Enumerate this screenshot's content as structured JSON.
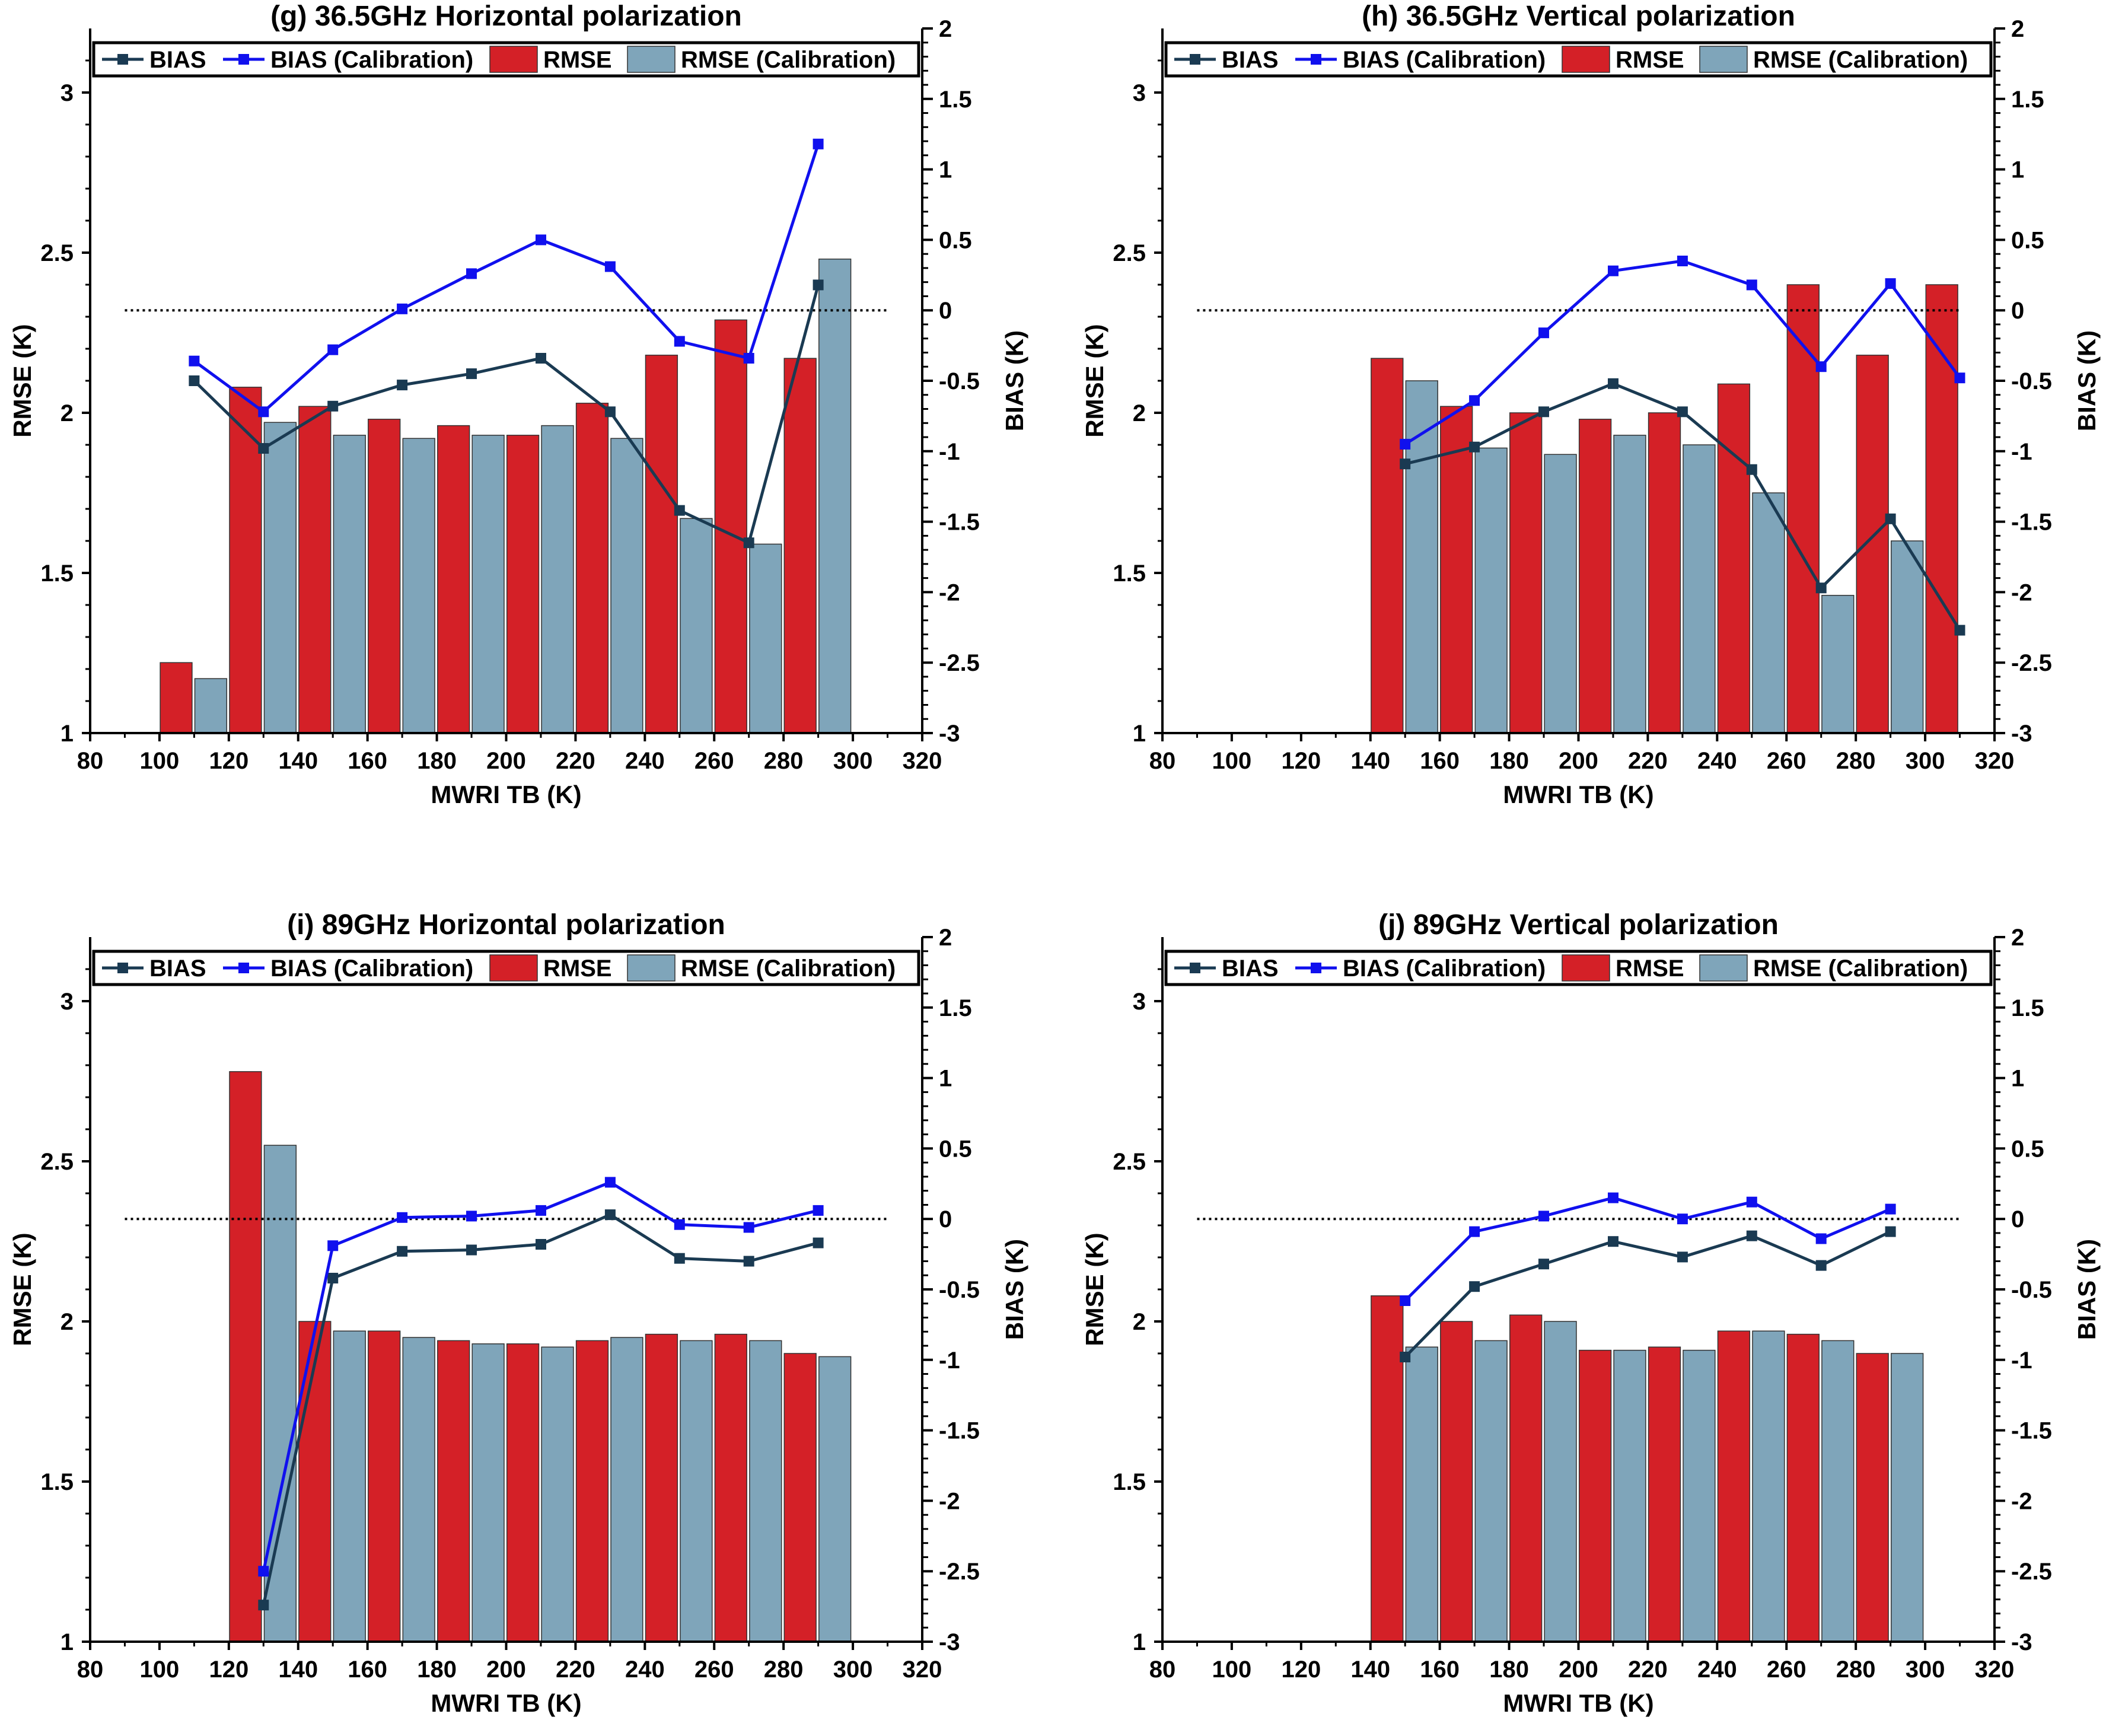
{
  "figure": {
    "background": "#ffffff"
  },
  "colors": {
    "rmse": "#d42027",
    "rmse_cal": "#7fa5ba",
    "bias": "#1a3a52",
    "bias_cal": "#1010ee"
  },
  "chart_data": [
    {
      "type": "bar",
      "title": "(g) 36.5GHz Horizontal polarization",
      "xlabel": "MWRI TB (K)",
      "ylabel": "RMSE (K)",
      "y2label": "BIAS (K)",
      "xlim": [
        80,
        320
      ],
      "xticks": [
        80,
        100,
        120,
        140,
        160,
        180,
        200,
        220,
        240,
        260,
        280,
        300,
        320
      ],
      "ylim": [
        1,
        3.2
      ],
      "yticks": [
        1,
        1.5,
        2,
        2.5,
        3
      ],
      "y2lim": [
        -3,
        2
      ],
      "y2ticks": [
        -3,
        -2.5,
        -2,
        -1.5,
        -1,
        -0.5,
        0,
        0.5,
        1,
        1.5,
        2
      ],
      "zero_line": {
        "x_range": [
          90,
          310
        ],
        "y2": 0
      },
      "legend": {
        "position": "top",
        "labels": [
          "BIAS",
          "BIAS (Calibration)",
          "RMSE",
          "RMSE (Calibration)"
        ]
      },
      "centers": [
        110,
        130,
        150,
        170,
        190,
        210,
        230,
        250,
        270,
        290
      ],
      "series": [
        {
          "name": "RMSE",
          "kind": "bar",
          "axis": "left",
          "values": [
            1.22,
            2.08,
            2.02,
            1.98,
            1.96,
            1.93,
            2.03,
            2.18,
            2.29,
            2.17
          ]
        },
        {
          "name": "RMSE (Calibration)",
          "kind": "bar",
          "axis": "left",
          "values": [
            1.17,
            1.97,
            1.93,
            1.92,
            1.93,
            1.96,
            1.92,
            1.67,
            1.59,
            2.48
          ]
        },
        {
          "name": "BIAS",
          "kind": "line",
          "axis": "right",
          "values": [
            -0.5,
            -0.98,
            -0.68,
            -0.53,
            -0.45,
            -0.34,
            -0.72,
            -1.42,
            -1.65,
            0.18
          ]
        },
        {
          "name": "BIAS (Calibration)",
          "kind": "line",
          "axis": "right",
          "values": [
            -0.36,
            -0.72,
            -0.28,
            0.01,
            0.26,
            0.5,
            0.31,
            -0.22,
            -0.34,
            1.18
          ]
        }
      ]
    },
    {
      "type": "bar",
      "title": "(h) 36.5GHz Vertical polarization",
      "xlabel": "MWRI TB (K)",
      "ylabel": "RMSE (K)",
      "y2label": "BIAS (K)",
      "xlim": [
        80,
        320
      ],
      "xticks": [
        80,
        100,
        120,
        140,
        160,
        180,
        200,
        220,
        240,
        260,
        280,
        300,
        320
      ],
      "ylim": [
        1,
        3.2
      ],
      "yticks": [
        1,
        1.5,
        2,
        2.5,
        3
      ],
      "y2lim": [
        -3,
        2
      ],
      "y2ticks": [
        -3,
        -2.5,
        -2,
        -1.5,
        -1,
        -0.5,
        0,
        0.5,
        1,
        1.5,
        2
      ],
      "zero_line": {
        "x_range": [
          90,
          310
        ],
        "y2": 0
      },
      "legend": {
        "position": "top",
        "labels": [
          "BIAS",
          "BIAS (Calibration)",
          "RMSE",
          "RMSE (Calibration)"
        ]
      },
      "centers": [
        150,
        170,
        190,
        210,
        230,
        250,
        270,
        290,
        310
      ],
      "series": [
        {
          "name": "RMSE",
          "kind": "bar",
          "axis": "left",
          "values": [
            2.17,
            2.02,
            2.0,
            1.98,
            2.0,
            2.09,
            2.4,
            2.18,
            2.4
          ]
        },
        {
          "name": "RMSE (Calibration)",
          "kind": "bar",
          "axis": "left",
          "values": [
            2.1,
            1.89,
            1.87,
            1.93,
            1.9,
            1.75,
            1.43,
            1.6,
            null
          ]
        },
        {
          "name": "BIAS",
          "kind": "line",
          "axis": "right",
          "values": [
            -1.09,
            -0.97,
            -0.72,
            -0.52,
            -0.72,
            -1.13,
            -1.97,
            -1.48,
            -2.27
          ]
        },
        {
          "name": "BIAS (Calibration)",
          "kind": "line",
          "axis": "right",
          "values": [
            -0.95,
            -0.64,
            -0.16,
            0.28,
            0.35,
            0.18,
            -0.4,
            0.19,
            -0.48
          ]
        }
      ]
    },
    {
      "type": "bar",
      "title": "(i) 89GHz Horizontal polarization",
      "xlabel": "MWRI TB (K)",
      "ylabel": "RMSE (K)",
      "y2label": "BIAS (K)",
      "xlim": [
        80,
        320
      ],
      "xticks": [
        80,
        100,
        120,
        140,
        160,
        180,
        200,
        220,
        240,
        260,
        280,
        300,
        320
      ],
      "ylim": [
        1,
        3.2
      ],
      "yticks": [
        1,
        1.5,
        2,
        2.5,
        3
      ],
      "y2lim": [
        -3,
        2
      ],
      "y2ticks": [
        -3,
        -2.5,
        -2,
        -1.5,
        -1,
        -0.5,
        0,
        0.5,
        1,
        1.5,
        2
      ],
      "zero_line": {
        "x_range": [
          90,
          310
        ],
        "y2": 0
      },
      "legend": {
        "position": "top",
        "labels": [
          "BIAS",
          "BIAS (Calibration)",
          "RMSE",
          "RMSE (Calibration)"
        ]
      },
      "centers": [
        130,
        150,
        170,
        190,
        210,
        230,
        250,
        270,
        290
      ],
      "series": [
        {
          "name": "RMSE",
          "kind": "bar",
          "axis": "left",
          "values": [
            2.78,
            2.0,
            1.97,
            1.94,
            1.93,
            1.94,
            1.96,
            1.96,
            1.9
          ]
        },
        {
          "name": "RMSE (Calibration)",
          "kind": "bar",
          "axis": "left",
          "values": [
            2.55,
            1.97,
            1.95,
            1.93,
            1.92,
            1.95,
            1.94,
            1.94,
            1.89
          ]
        },
        {
          "name": "BIAS",
          "kind": "line",
          "axis": "right",
          "values": [
            -2.74,
            -0.42,
            -0.23,
            -0.22,
            -0.18,
            0.03,
            -0.28,
            -0.3,
            -0.17
          ]
        },
        {
          "name": "BIAS (Calibration)",
          "kind": "line",
          "axis": "right",
          "values": [
            -2.5,
            -0.19,
            0.01,
            0.02,
            0.06,
            0.26,
            -0.04,
            -0.06,
            0.06
          ]
        }
      ]
    },
    {
      "type": "bar",
      "title": "(j) 89GHz Vertical polarization",
      "xlabel": "MWRI TB (K)",
      "ylabel": "RMSE (K)",
      "y2label": "BIAS (K)",
      "xlim": [
        80,
        320
      ],
      "xticks": [
        80,
        100,
        120,
        140,
        160,
        180,
        200,
        220,
        240,
        260,
        280,
        300,
        320
      ],
      "ylim": [
        1,
        3.2
      ],
      "yticks": [
        1,
        1.5,
        2,
        2.5,
        3
      ],
      "y2lim": [
        -3,
        2
      ],
      "y2ticks": [
        -3,
        -2.5,
        -2,
        -1.5,
        -1,
        -0.5,
        0,
        0.5,
        1,
        1.5,
        2
      ],
      "zero_line": {
        "x_range": [
          90,
          310
        ],
        "y2": 0
      },
      "legend": {
        "position": "top",
        "labels": [
          "BIAS",
          "BIAS (Calibration)",
          "RMSE",
          "RMSE (Calibration)"
        ]
      },
      "centers": [
        150,
        170,
        190,
        210,
        230,
        250,
        270,
        290
      ],
      "series": [
        {
          "name": "RMSE",
          "kind": "bar",
          "axis": "left",
          "values": [
            2.08,
            2.0,
            2.02,
            1.91,
            1.92,
            1.97,
            1.96,
            1.9
          ]
        },
        {
          "name": "RMSE (Calibration)",
          "kind": "bar",
          "axis": "left",
          "values": [
            1.92,
            1.94,
            2.0,
            1.91,
            1.91,
            1.97,
            1.94,
            1.9
          ]
        },
        {
          "name": "BIAS",
          "kind": "line",
          "axis": "right",
          "values": [
            -0.98,
            -0.48,
            -0.32,
            -0.16,
            -0.27,
            -0.12,
            -0.33,
            -0.09
          ]
        },
        {
          "name": "BIAS (Calibration)",
          "kind": "line",
          "axis": "right",
          "values": [
            -0.58,
            -0.09,
            0.02,
            0.15,
            0.0,
            0.12,
            -0.14,
            0.07
          ]
        }
      ]
    }
  ]
}
